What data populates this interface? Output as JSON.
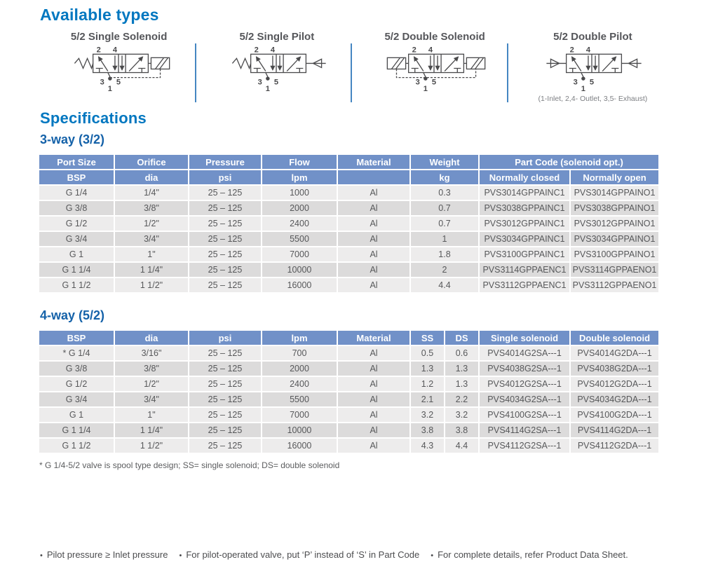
{
  "available_types": {
    "title": "Available types",
    "note": "(1-Inlet, 2,4- Outlet, 3,5- Exhaust)",
    "port_labels": {
      "top": [
        "2",
        "4"
      ],
      "bottom": [
        "3",
        "1",
        "5"
      ]
    },
    "types": [
      {
        "label": "5/2 Single Solenoid",
        "left": "spring",
        "right": "solenoid"
      },
      {
        "label": "5/2 Single Pilot",
        "left": "spring",
        "right": "pilot"
      },
      {
        "label": "5/2 Double Solenoid",
        "left": "solenoid",
        "right": "solenoid"
      },
      {
        "label": "5/2 Double Pilot",
        "left": "pilot",
        "right": "pilot"
      }
    ]
  },
  "specifications": {
    "title": "Specifications",
    "table_3way": {
      "title": "3-way (3/2)",
      "header_row1": [
        {
          "label": "Port Size",
          "span": 1
        },
        {
          "label": "Orifice",
          "span": 1
        },
        {
          "label": "Pressure",
          "span": 1
        },
        {
          "label": "Flow",
          "span": 1
        },
        {
          "label": "Material",
          "span": 1
        },
        {
          "label": "Weight",
          "span": 1
        },
        {
          "label": "Part Code (solenoid opt.)",
          "span": 2
        }
      ],
      "header_row2": [
        "BSP",
        "dia",
        "psi",
        "lpm",
        "",
        "kg",
        "Normally closed",
        "Normally open"
      ],
      "rows": [
        [
          "G 1/4",
          "1/4\"",
          "25 – 125",
          "1000",
          "Al",
          "0.3",
          "PVS3014GPPAINC1",
          "PVS3014GPPAINO1"
        ],
        [
          "G 3/8",
          "3/8\"",
          "25 – 125",
          "2000",
          "Al",
          "0.7",
          "PVS3038GPPAINC1",
          "PVS3038GPPAINO1"
        ],
        [
          "G 1/2",
          "1/2\"",
          "25 – 125",
          "2400",
          "Al",
          "0.7",
          "PVS3012GPPAINC1",
          "PVS3012GPPAINO1"
        ],
        [
          "G 3/4",
          "3/4\"",
          "25 – 125",
          "5500",
          "Al",
          "1",
          "PVS3034GPPAINC1",
          "PVS3034GPPAINO1"
        ],
        [
          "G 1",
          "1\"",
          "25 – 125",
          "7000",
          "Al",
          "1.8",
          "PVS3100GPPAINC1",
          "PVS3100GPPAINO1"
        ],
        [
          "G 1 1/4",
          "1 1/4\"",
          "25 – 125",
          "10000",
          "Al",
          "2",
          "PVS3114GPPAENC1",
          "PVS3114GPPAENO1"
        ],
        [
          "G 1 1/2",
          "1 1/2\"",
          "25 – 125",
          "16000",
          "Al",
          "4.4",
          "PVS3112GPPAENC1",
          "PVS3112GPPAENO1"
        ]
      ]
    },
    "table_4way": {
      "title": "4-way (5/2)",
      "headers": [
        "BSP",
        "dia",
        "psi",
        "lpm",
        "Material",
        "SS",
        "DS",
        "Single solenoid",
        "Double solenoid"
      ],
      "rows": [
        [
          "* G 1/4",
          "3/16\"",
          "25 – 125",
          "700",
          "Al",
          "0.5",
          "0.6",
          "PVS4014G2SA---1",
          "PVS4014G2DA---1"
        ],
        [
          "G 3/8",
          "3/8\"",
          "25 – 125",
          "2000",
          "Al",
          "1.3",
          "1.3",
          "PVS4038G2SA---1",
          "PVS4038G2DA---1"
        ],
        [
          "G 1/2",
          "1/2\"",
          "25 – 125",
          "2400",
          "Al",
          "1.2",
          "1.3",
          "PVS4012G2SA---1",
          "PVS4012G2DA---1"
        ],
        [
          "G 3/4",
          "3/4\"",
          "25 – 125",
          "5500",
          "Al",
          "2.1",
          "2.2",
          "PVS4034G2SA---1",
          "PVS4034G2DA---1"
        ],
        [
          "G 1",
          "1\"",
          "25 – 125",
          "7000",
          "Al",
          "3.2",
          "3.2",
          "PVS4100G2SA---1",
          "PVS4100G2DA---1"
        ],
        [
          "G 1 1/4",
          "1 1/4\"",
          "25 – 125",
          "10000",
          "Al",
          "3.8",
          "3.8",
          "PVS4114G2SA---1",
          "PVS4114G2DA---1"
        ],
        [
          "G 1 1/2",
          "1 1/2\"",
          "25 – 125",
          "16000",
          "Al",
          "4.3",
          "4.4",
          "PVS4112G2SA---1",
          "PVS4112G2DA---1"
        ]
      ]
    },
    "footnote": "* G 1/4-5/2 valve is spool type design; SS= single solenoid; DS= double solenoid"
  },
  "footer": {
    "bullets": [
      "Pilot pressure ≥ Inlet pressure",
      "For pilot-operated valve, put ‘P’ instead of ‘S’ in Part Code",
      "For complete details, refer Product Data Sheet."
    ]
  },
  "colors": {
    "heading_blue": "#0077c0",
    "subheading_blue": "#1562a9",
    "table_header_blue": "#7191c8",
    "row_light": "#edecec",
    "row_dark": "#dcdbdb",
    "divider_blue": "#4586c2",
    "diagram_line": "#4a4a4c",
    "body_text": "#57585a"
  }
}
